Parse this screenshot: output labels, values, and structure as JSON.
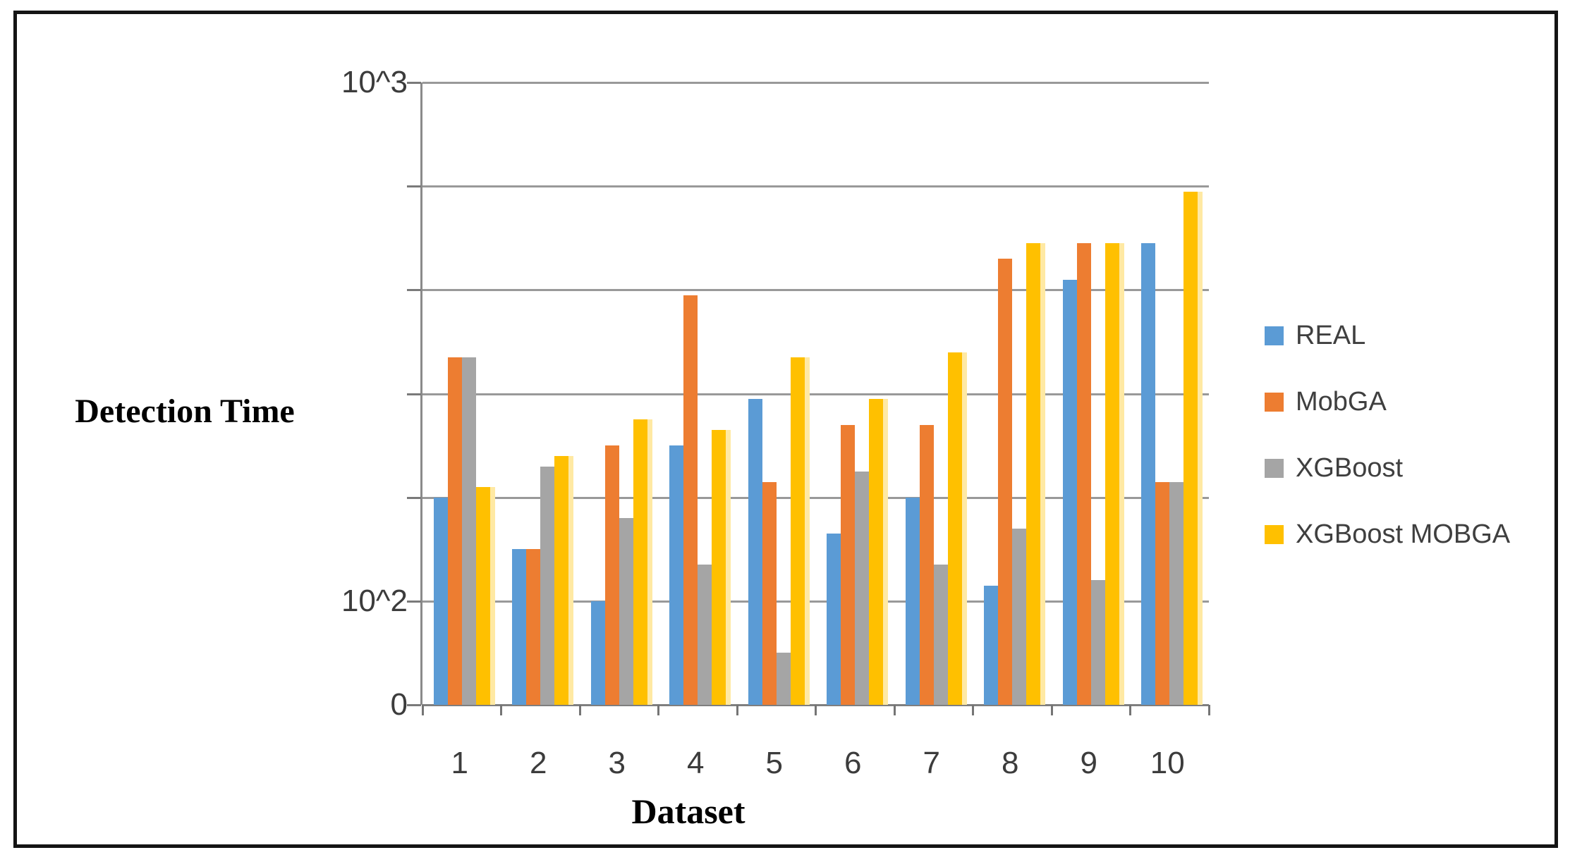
{
  "chart_data": {
    "type": "bar",
    "title": "",
    "xlabel": "Dataset",
    "ylabel": "Detection Time",
    "categories": [
      "1",
      "2",
      "3",
      "4",
      "5",
      "6",
      "7",
      "8",
      "9",
      "10"
    ],
    "series": [
      {
        "name": "REAL",
        "color": "#5B9BD5",
        "values": [
          2.0,
          1.5,
          1.0,
          2.5,
          2.95,
          1.65,
          2.0,
          1.15,
          4.1,
          4.45
        ]
      },
      {
        "name": "MobGA",
        "color": "#ED7D31",
        "values": [
          3.35,
          1.5,
          2.5,
          3.95,
          2.15,
          2.7,
          2.7,
          4.3,
          4.45,
          2.15
        ]
      },
      {
        "name": "XGBoost",
        "color": "#A5A5A5",
        "values": [
          3.35,
          2.3,
          1.8,
          1.35,
          0.5,
          2.25,
          1.35,
          1.7,
          1.2,
          2.15
        ]
      },
      {
        "name": "XGBoost MOBGA",
        "color": "#FFC000",
        "values": [
          2.1,
          2.4,
          2.75,
          2.65,
          3.35,
          2.95,
          3.4,
          4.45,
          4.45,
          4.95
        ],
        "edge_glow_color": "#FFE9A3"
      }
    ],
    "y_axis": {
      "tick_labels": [
        "0",
        "10^2",
        "10^3"
      ],
      "ticks": [
        {
          "label": "0",
          "units": 0
        },
        {
          "label": "10^2",
          "units": 1
        },
        {
          "label": "10^3",
          "units": 6
        }
      ],
      "gridline_units": [
        0,
        1,
        2,
        3,
        4,
        5,
        6
      ],
      "ylim": [
        0,
        6
      ],
      "grid": true,
      "units_note": "values are in gridline units as drawn: 0 = baseline, 1 = the 10^2 gridline, 6 = the 10^3 top gridline (axis is pseudo-logarithmic)"
    },
    "legend_position": "right",
    "colors": {
      "gridline": "#999999",
      "axis_line": "#8a8a8a",
      "tick_text": "#3c3c3c",
      "legend_text": "#3f3f3f",
      "title_text": "#000000",
      "frame_border": "#141414"
    }
  }
}
